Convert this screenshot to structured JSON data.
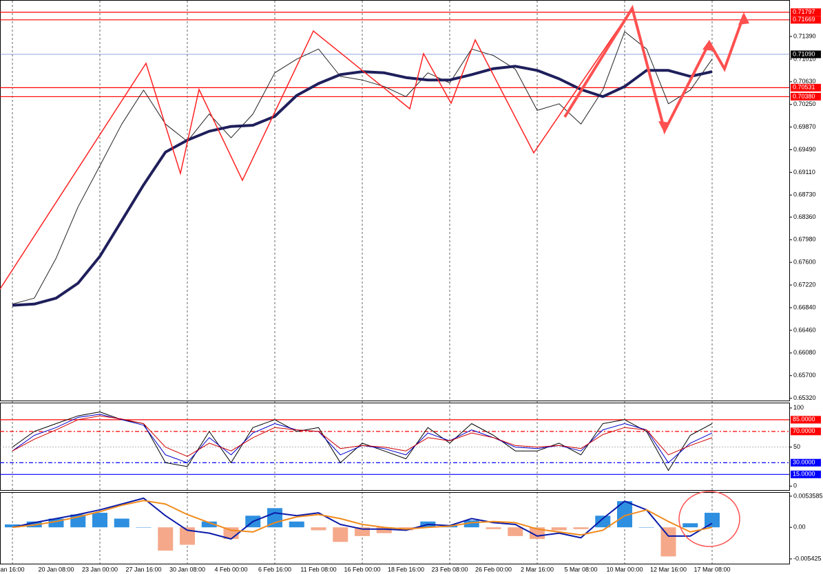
{
  "chart_data": [
    {
      "type": "line",
      "ylim": [
        0.7199,
        0.6527
      ],
      "yticks": [
        {
          "value": 0.7139,
          "label": "0.71390"
        },
        {
          "value": 0.7101,
          "label": "0.71010"
        },
        {
          "value": 0.7063,
          "label": "0.70630"
        },
        {
          "value": 0.7025,
          "label": "0.70250"
        },
        {
          "value": 0.6987,
          "label": "0.69870"
        },
        {
          "value": 0.6949,
          "label": "0.69490"
        },
        {
          "value": 0.6911,
          "label": "0.69110"
        },
        {
          "value": 0.6873,
          "label": "0.68730"
        },
        {
          "value": 0.6836,
          "label": "0.68360"
        },
        {
          "value": 0.6798,
          "label": "0.67980"
        },
        {
          "value": 0.676,
          "label": "0.67600"
        },
        {
          "value": 0.6722,
          "label": "0.67220"
        },
        {
          "value": 0.6684,
          "label": "0.66840"
        },
        {
          "value": 0.6646,
          "label": "0.66460"
        },
        {
          "value": 0.6608,
          "label": "0.66080"
        },
        {
          "value": 0.657,
          "label": "0.65700"
        },
        {
          "value": 0.6532,
          "label": "0.65320"
        }
      ],
      "levels": [
        {
          "value": 0.71797,
          "label": "0.71797",
          "color": "#ff0000"
        },
        {
          "value": 0.71669,
          "label": "0.71669",
          "color": "#ff0000"
        },
        {
          "value": 0.7109,
          "label": "0.71090",
          "color": "#000000",
          "line_color": "#4a6fd0"
        },
        {
          "value": 0.70531,
          "label": "0.70531",
          "color": "#ff0000"
        },
        {
          "value": 0.7038,
          "label": "0.70380",
          "color": "#ff0000"
        }
      ],
      "series": [
        {
          "color": "#222222",
          "values": [
            0.669,
            0.67,
            0.6767,
            0.6853,
            0.6922,
            0.6992,
            0.7049,
            0.6992,
            0.6963,
            0.7009,
            0.6969,
            0.7009,
            0.7078,
            0.7101,
            0.7118,
            0.7072,
            0.7066,
            0.7055,
            0.7038,
            0.7078,
            0.7061,
            0.7118,
            0.7107,
            0.7084,
            0.7015,
            0.7026,
            0.6992,
            0.7049,
            0.7147,
            0.7118,
            0.7026,
            0.7049,
            0.7101
          ]
        },
        {
          "color": "#1f1f5c",
          "values": [
            0.6688,
            0.669,
            0.67,
            0.6725,
            0.677,
            0.683,
            0.689,
            0.6945,
            0.6965,
            0.698,
            0.6988,
            0.699,
            0.7005,
            0.704,
            0.706,
            0.7075,
            0.708,
            0.7078,
            0.707,
            0.7066,
            0.7066,
            0.7075,
            0.7085,
            0.7089,
            0.7082,
            0.7068,
            0.705,
            0.7038,
            0.7055,
            0.7082,
            0.7082,
            0.7072,
            0.708
          ]
        }
      ]
    },
    {
      "type": "line",
      "ylim": [
        106,
        -5
      ],
      "yticks": [
        100,
        50,
        0
      ],
      "levels": [
        {
          "value": 85,
          "label": "85.0000",
          "color": "#ff0000"
        },
        {
          "value": 70,
          "label": "70.0000",
          "color": "#ff0000",
          "dash": true
        },
        {
          "value": 30,
          "label": "30.0000",
          "color": "#0000ff",
          "dash": true
        },
        {
          "value": 15,
          "label": "15.0000",
          "color": "#0000ff"
        }
      ],
      "series": [
        {
          "color": "#000000",
          "values": [
            50,
            70,
            80,
            90,
            95,
            85,
            80,
            30,
            25,
            70,
            30,
            75,
            85,
            70,
            75,
            30,
            55,
            45,
            35,
            75,
            55,
            80,
            65,
            45,
            45,
            55,
            40,
            80,
            85,
            70,
            20,
            65,
            80
          ]
        },
        {
          "color": "#0000cc",
          "values": [
            45,
            65,
            75,
            88,
            92,
            85,
            78,
            40,
            30,
            62,
            40,
            68,
            80,
            72,
            70,
            40,
            52,
            48,
            40,
            68,
            58,
            72,
            62,
            50,
            48,
            52,
            45,
            72,
            80,
            72,
            30,
            55,
            68
          ]
        },
        {
          "color": "#d00000",
          "values": [
            45,
            60,
            72,
            85,
            90,
            86,
            80,
            50,
            38,
            55,
            45,
            62,
            75,
            72,
            70,
            48,
            52,
            50,
            45,
            62,
            58,
            68,
            62,
            52,
            50,
            52,
            48,
            66,
            75,
            72,
            40,
            52,
            62
          ]
        }
      ]
    },
    {
      "type": "bar",
      "categories": [
        "an 16:00",
        null,
        "20 Jan 08:00",
        null,
        "23 Jan 00:00",
        null,
        "27 Jan 16:00",
        null,
        "30 Jan 08:00",
        null,
        "4 Feb 00:00",
        null,
        "6 Feb 16:00",
        null,
        "11 Feb 08:00",
        null,
        "16 Feb 00:00",
        null,
        "18 Feb 16:00",
        null,
        "23 Feb 08:00",
        null,
        "26 Feb 00:00",
        null,
        "2 Mar 16:00",
        null,
        "5 Mar 08:00",
        null,
        "10 Mar 00:00",
        null,
        "12 Mar 16:00",
        null,
        "17 Mar 08:00"
      ],
      "ylim": [
        0.00594,
        -0.00625
      ],
      "yticks": [
        {
          "value": 0.0053585,
          "label": "0.0053585"
        },
        {
          "value": 0,
          "label": "0.00"
        },
        {
          "value": -0.005425,
          "label": "-0.005425"
        }
      ],
      "values": [
        0.0005,
        0.001,
        0.0015,
        0.0022,
        0.0025,
        0.0015,
        0,
        -0.004,
        -0.003,
        0.001,
        -0.002,
        0.002,
        0.0033,
        0.001,
        -0.0005,
        -0.0025,
        -0.0015,
        -0.001,
        -0.0005,
        0.001,
        0.0003,
        0.0012,
        -0.0003,
        -0.0015,
        -0.002,
        -0.0005,
        -0.0003,
        0.002,
        0.0045,
        0,
        -0.005,
        0.0007,
        0.0025
      ],
      "color_up": "#2e8fe0",
      "color_down": "#f5a98a",
      "series": [
        {
          "color": "#0a1aa8",
          "values": [
            0,
            0.0008,
            0.0015,
            0.0022,
            0.003,
            0.004,
            0.005,
            0.002,
            -0.0005,
            -0.001,
            -0.002,
            0.001,
            0.0025,
            0.002,
            0.0025,
            0.0005,
            -0.0003,
            -0.0003,
            -0.0005,
            0.0005,
            0.0003,
            0.0015,
            0.0008,
            0.0005,
            -0.0015,
            -0.001,
            -0.0018,
            0.0015,
            0.0045,
            0.003,
            -0.0015,
            -0.0015,
            0.0007
          ]
        },
        {
          "color": "#f08a1c",
          "values": [
            0,
            0.0004,
            0.001,
            0.0018,
            0.0027,
            0.0038,
            0.0046,
            0.004,
            0.0022,
            0.0008,
            -0.0005,
            -0.0008,
            0.0008,
            0.0018,
            0.0022,
            0.0015,
            0.0005,
            0,
            -0.0003,
            0,
            0.0002,
            0.0008,
            0.001,
            0.0008,
            -0.0003,
            -0.0008,
            -0.0013,
            -0.0005,
            0.002,
            0.003,
            0.001,
            -0.0008,
            0
          ]
        }
      ]
    }
  ]
}
